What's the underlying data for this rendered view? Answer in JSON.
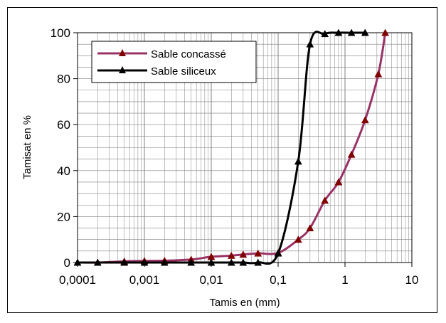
{
  "chart_data": {
    "type": "line",
    "title": "",
    "xlabel": "Tamis en  (mm)",
    "ylabel": "Tamisat en %",
    "x_scale": "log",
    "xlim": [
      0.0001,
      10
    ],
    "ylim": [
      0,
      100
    ],
    "x_tick_labels": [
      "0,0001",
      "0,001",
      "0,01",
      "0,1",
      "1",
      "10"
    ],
    "y_tick_labels": [
      "0",
      "20",
      "40",
      "60",
      "80",
      "100"
    ],
    "grid": true,
    "legend_position": "top-left",
    "series": [
      {
        "name": "Sable concassé",
        "color": "#993366",
        "marker_color": "#800000",
        "marker": "triangle",
        "x": [
          0.0001,
          0.0002,
          0.0005,
          0.001,
          0.002,
          0.005,
          0.01,
          0.02,
          0.03,
          0.05,
          0.1,
          0.2,
          0.3,
          0.5,
          0.8,
          1.25,
          2,
          3.15,
          4
        ],
        "y": [
          0,
          0,
          0.5,
          0.7,
          0.8,
          1.3,
          2.5,
          3,
          3.5,
          4,
          4.2,
          10,
          15,
          27,
          35,
          47,
          62,
          82,
          100
        ]
      },
      {
        "name": "Sable siliceux",
        "color": "#000000",
        "marker_color": "#000000",
        "marker": "triangle",
        "x": [
          0.0001,
          0.0002,
          0.0005,
          0.001,
          0.002,
          0.005,
          0.01,
          0.02,
          0.03,
          0.05,
          0.1,
          0.2,
          0.3,
          0.5,
          0.8,
          1.25,
          2
        ],
        "y": [
          0,
          0,
          0,
          0,
          0,
          0,
          0,
          0,
          0,
          0,
          4,
          44,
          95,
          99.5,
          100,
          100,
          100
        ]
      }
    ]
  }
}
